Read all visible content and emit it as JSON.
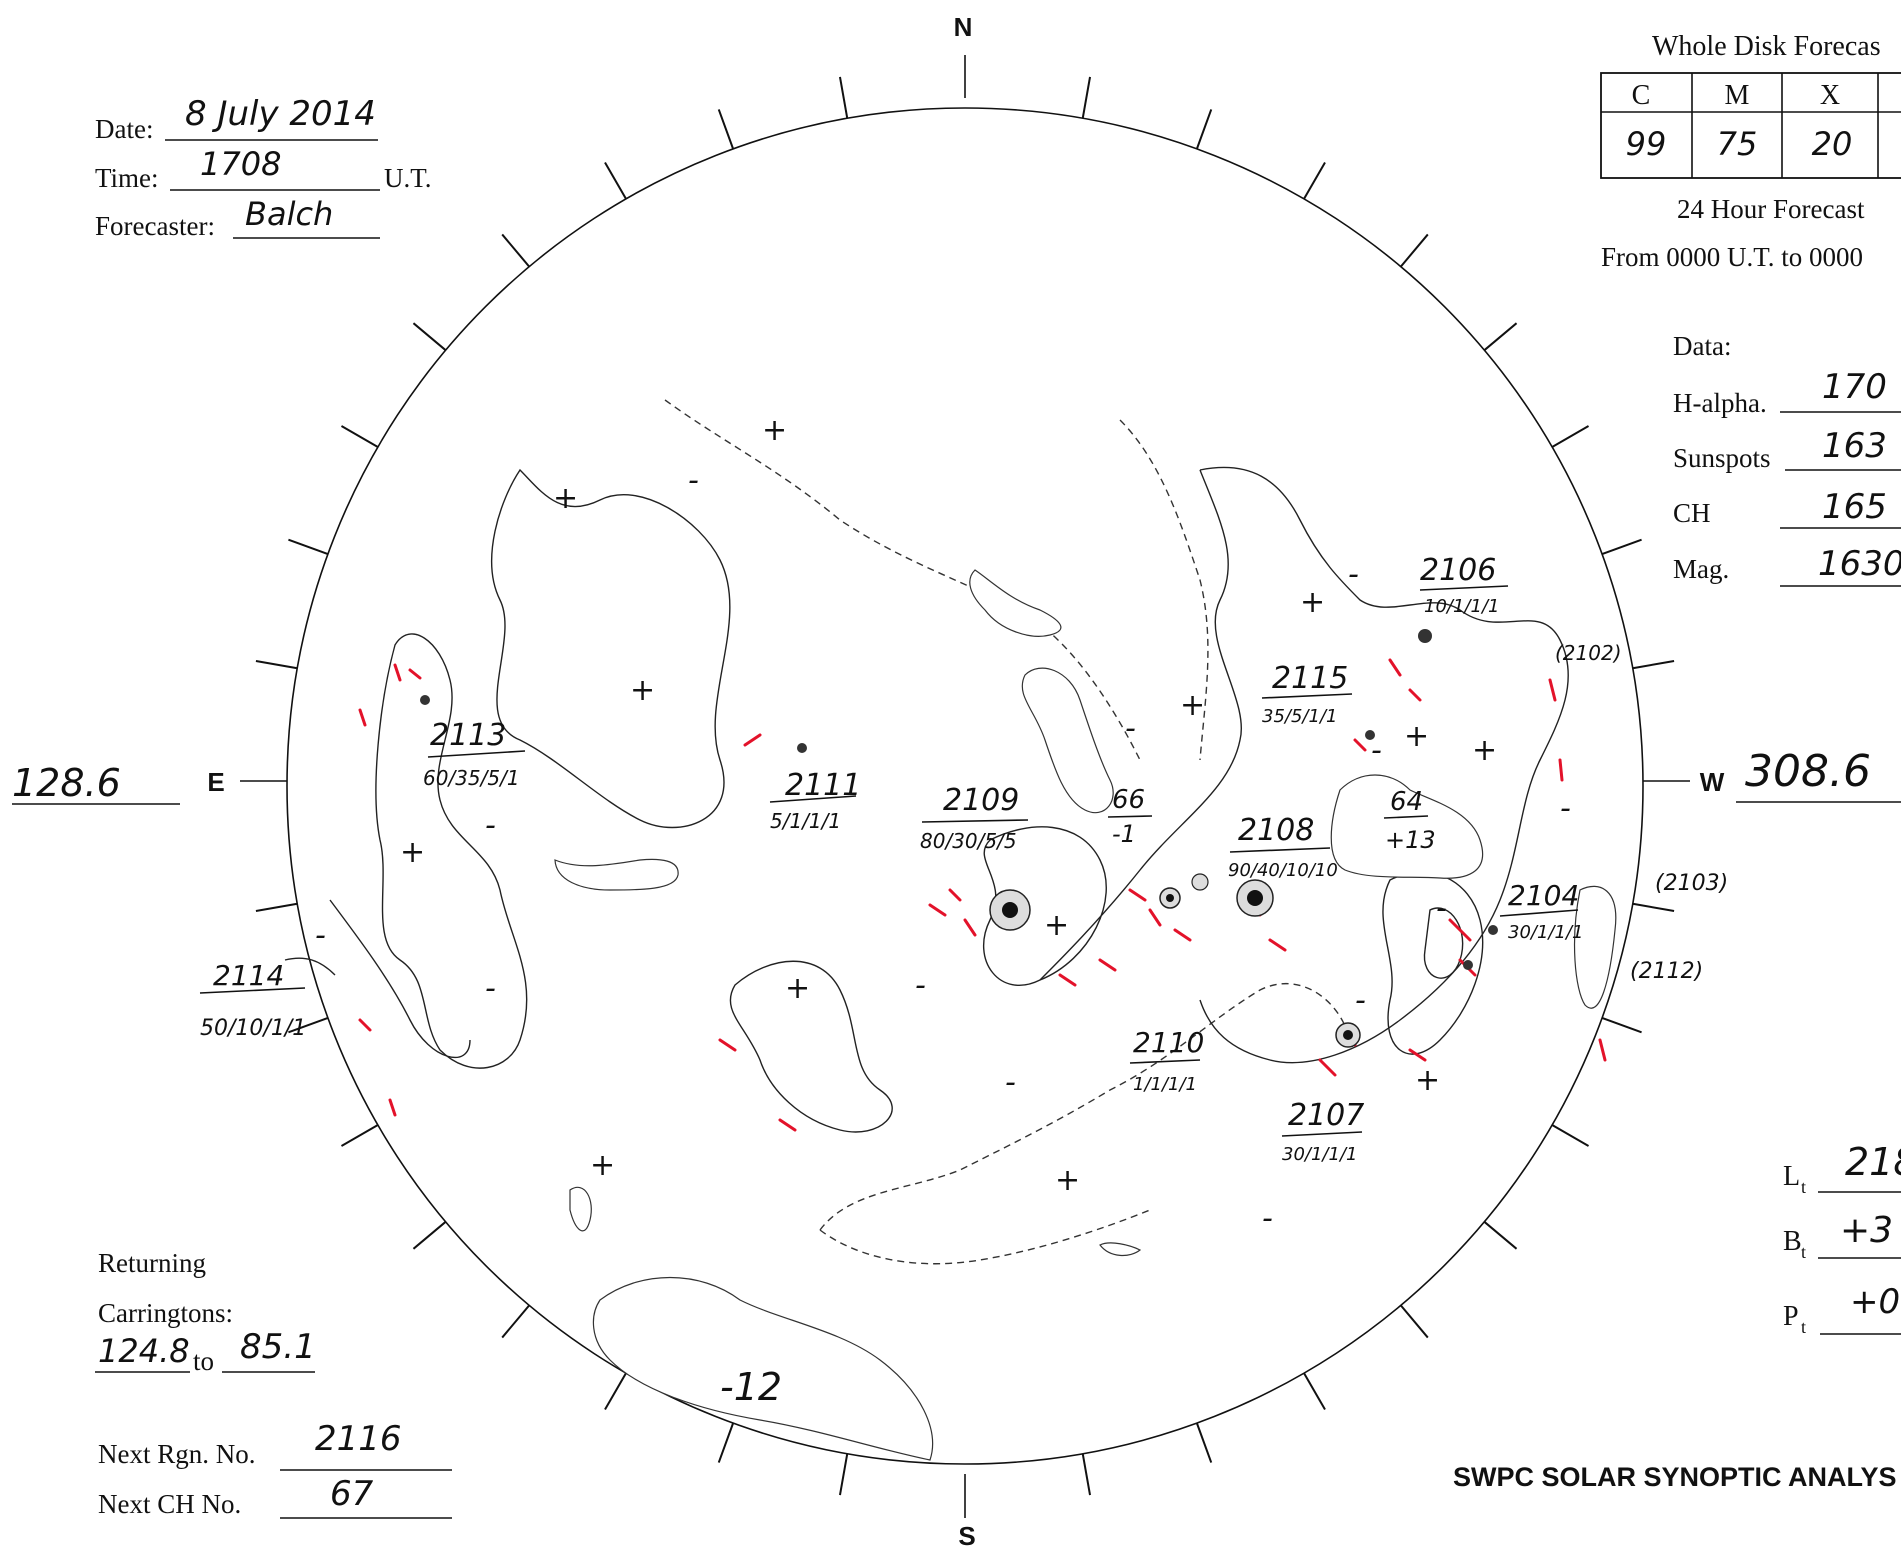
{
  "compass": {
    "north": "N",
    "south": "S",
    "east": "E",
    "west": "W"
  },
  "header_left": {
    "date_label": "Date:",
    "date_value": "8 July 2014",
    "time_label": "Time:",
    "time_value": "1708",
    "time_unit": "U.T.",
    "forecaster_label": "Forecaster:",
    "forecaster_value": "Balch"
  },
  "forecast": {
    "title": "Whole Disk Forecas",
    "columns": [
      "C",
      "M",
      "X"
    ],
    "values": [
      "99",
      "75",
      "20"
    ],
    "subtitle": "24 Hour Forecast",
    "period": "From 0000 U.T. to 0000"
  },
  "data_times": {
    "label": "Data:",
    "rows": [
      {
        "label": "H-alpha.",
        "value": "170"
      },
      {
        "label": "Sunspots",
        "value": "163"
      },
      {
        "label": "CH",
        "value": "165"
      },
      {
        "label": "Mag.",
        "value": "1630"
      }
    ]
  },
  "longitudes": {
    "east": "128.6",
    "west": "308.6"
  },
  "orientation": [
    {
      "label": "L",
      "sub": "t",
      "value": "218"
    },
    {
      "label": "B",
      "sub": "t",
      "value": "+3"
    },
    {
      "label": "P",
      "sub": "t",
      "value": "+0"
    }
  ],
  "returning": {
    "label1": "Returning",
    "label2": "Carringtons:",
    "from": "124.8",
    "to_label": "to",
    "to": "85.1"
  },
  "next": {
    "rgn_label": "Next Rgn. No.",
    "rgn_value": "2116",
    "ch_label": "Next CH No.",
    "ch_value": "67"
  },
  "footer_title": "SWPC SOLAR SYNOPTIC ANALYS",
  "regions": [
    {
      "number": "2113",
      "info": "60/35/5/1"
    },
    {
      "number": "2111",
      "info": "5/1/1/1"
    },
    {
      "number": "2109",
      "info": "80/30/5/5"
    },
    {
      "number": "2108",
      "info": "90/40/10/10"
    },
    {
      "number": "2115",
      "info": "35/5/1/1"
    },
    {
      "number": "2106",
      "info": "10/1/1/1"
    },
    {
      "number": "2104",
      "info": "30/1/1/1"
    },
    {
      "number": "2107",
      "info": "30/1/1/1"
    },
    {
      "number": "2110",
      "info": "1/1/1/1"
    },
    {
      "number": "2114",
      "info": "50/10/1/1"
    }
  ],
  "returning_regions": [
    "(2102)",
    "(2103)",
    "(2112)"
  ],
  "coronal_holes": [
    {
      "number": "66",
      "polarity": "-1"
    },
    {
      "number": "64",
      "polarity": "+13"
    },
    {
      "number": "",
      "polarity": "-12"
    }
  ],
  "polarity_marks": {
    "plus": "+",
    "minus": "-"
  }
}
